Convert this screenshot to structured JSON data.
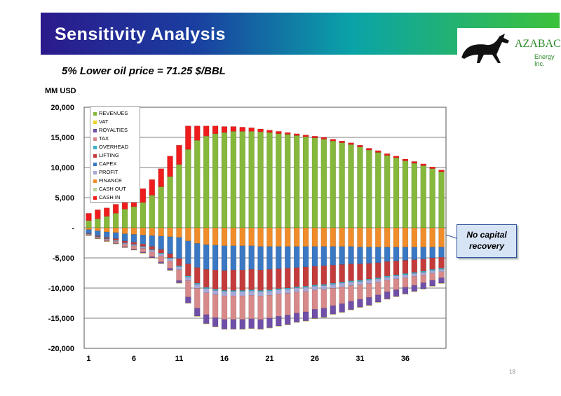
{
  "header": {
    "title": "Sensitivity Analysis",
    "logo_name": "AZABACHE",
    "logo_sub": "Energy Inc."
  },
  "subtitle": "5%  Lower oil price = 71.25 $/BBL",
  "unit_label": "MM USD",
  "callout": {
    "line1": "No capital",
    "line2": "recovery"
  },
  "page_number": "18",
  "colors": {
    "REVENUES": "#86b83c",
    "VAT": "#e8d42a",
    "ROYALTIES": "#6f4fa8",
    "TAX": "#d88a8a",
    "OVERHEAD": "#38b0c8",
    "LIFTING": "#c43b3b",
    "CAPEX": "#3a78c4",
    "PROFIT": "#a8a8d8",
    "FINANCE": "#f08c2a",
    "CASH OUT": "#b8d8a0",
    "CASH IN": "#ee1c1c"
  },
  "chart_data": {
    "type": "bar",
    "stacked": true,
    "ylabel": "MM USD",
    "ylim": [
      -20000,
      20000
    ],
    "yticks": [
      "20,000",
      "15,000",
      "10,000",
      "5,000",
      "-",
      "-5,000",
      "-10,000",
      "-15,000",
      "-20,000"
    ],
    "xticks": [
      "1",
      "6",
      "11",
      "16",
      "21",
      "26",
      "31",
      "36"
    ],
    "x": [
      1,
      2,
      3,
      4,
      5,
      6,
      7,
      8,
      9,
      10,
      11,
      12,
      13,
      14,
      15,
      16,
      17,
      18,
      19,
      20,
      21,
      22,
      23,
      24,
      25,
      26,
      27,
      28,
      29,
      30,
      31,
      32,
      33,
      34,
      35,
      36,
      37,
      38,
      39,
      40
    ],
    "legend": [
      "REVENUES",
      "VAT",
      "ROYALTIES",
      "TAX",
      "OVERHEAD",
      "LIFTING",
      "CAPEX",
      "PROFIT",
      "FINANCE",
      "CASH OUT",
      "CASH IN"
    ],
    "legend_position": "top-left",
    "grid": true,
    "series": [
      {
        "name": "REVENUES",
        "values": [
          1200,
          1500,
          1900,
          2400,
          3100,
          3500,
          4200,
          5400,
          6800,
          8500,
          10500,
          13000,
          14500,
          15200,
          15600,
          15800,
          16000,
          16000,
          16000,
          15900,
          15800,
          15600,
          15500,
          15300,
          15100,
          14900,
          14700,
          14400,
          14100,
          13800,
          13400,
          12900,
          12500,
          12000,
          11600,
          11100,
          10700,
          10300,
          9800,
          9300
        ]
      },
      {
        "name": "CASH IN",
        "values": [
          1200,
          1500,
          1400,
          1500,
          1900,
          2000,
          2300,
          2600,
          3000,
          3400,
          3200,
          3900,
          2400,
          1700,
          1300,
          1000,
          800,
          700,
          600,
          500,
          400,
          400,
          300,
          300,
          300,
          300,
          300,
          300,
          300,
          300,
          300,
          300,
          300,
          300,
          300,
          300,
          300,
          300,
          300,
          300
        ]
      },
      {
        "name": "FINANCE",
        "values": [
          -300,
          -500,
          -700,
          -800,
          -1000,
          -1100,
          -1200,
          -1300,
          -1400,
          -1500,
          -1600,
          -2200,
          -2600,
          -2800,
          -2900,
          -3000,
          -3000,
          -3000,
          -3000,
          -3100,
          -3100,
          -3100,
          -3100,
          -3100,
          -3100,
          -3100,
          -3100,
          -3100,
          -3100,
          -3100,
          -3200,
          -3200,
          -3200,
          -3200,
          -3200,
          -3200,
          -3200,
          -3200,
          -3200,
          -3200
        ]
      },
      {
        "name": "CAPEX",
        "values": [
          -600,
          -800,
          -900,
          -1000,
          -1200,
          -1300,
          -1500,
          -1800,
          -2200,
          -2800,
          -3500,
          -3800,
          -4000,
          -4100,
          -4100,
          -4100,
          -4000,
          -4000,
          -3900,
          -3900,
          -3800,
          -3700,
          -3600,
          -3500,
          -3400,
          -3300,
          -3200,
          -3100,
          -3000,
          -2900,
          -2800,
          -2700,
          -2600,
          -2400,
          -2300,
          -2200,
          -2100,
          -2000,
          -1800,
          -1700
        ]
      },
      {
        "name": "LIFTING",
        "values": [
          -100,
          -150,
          -200,
          -250,
          -300,
          -350,
          -400,
          -500,
          -600,
          -700,
          -1200,
          -2000,
          -2600,
          -3000,
          -3200,
          -3300,
          -3400,
          -3400,
          -3400,
          -3400,
          -3400,
          -3300,
          -3300,
          -3200,
          -3200,
          -3100,
          -3100,
          -3000,
          -2900,
          -2800,
          -2700,
          -2600,
          -2500,
          -2400,
          -2300,
          -2200,
          -2100,
          -2000,
          -1900,
          -1800
        ]
      },
      {
        "name": "OVERHEAD",
        "values": [
          -50,
          -60,
          -70,
          -80,
          -90,
          -100,
          -110,
          -120,
          -130,
          -140,
          -160,
          -180,
          -200,
          -200,
          -200,
          -200,
          -200,
          -200,
          -200,
          -200,
          -200,
          -200,
          -200,
          -200,
          -200,
          -200,
          -200,
          -200,
          -200,
          -200,
          -200,
          -200,
          -200,
          -200,
          -200,
          -200,
          -200,
          -200,
          -200,
          -200
        ]
      },
      {
        "name": "PROFIT",
        "values": [
          -60,
          -80,
          -100,
          -120,
          -150,
          -180,
          -220,
          -270,
          -330,
          -400,
          -500,
          -600,
          -650,
          -700,
          -700,
          -700,
          -700,
          -700,
          -700,
          -700,
          -690,
          -680,
          -670,
          -660,
          -650,
          -640,
          -630,
          -620,
          -600,
          -590,
          -570,
          -550,
          -530,
          -510,
          -490,
          -470,
          -450,
          -430,
          -410,
          -390
        ]
      },
      {
        "name": "TAX",
        "values": [
          -100,
          -150,
          -200,
          -300,
          -400,
          -500,
          -600,
          -800,
          -1000,
          -1200,
          -1800,
          -2700,
          -3300,
          -3600,
          -3800,
          -3900,
          -3900,
          -3900,
          -3900,
          -3900,
          -3800,
          -3700,
          -3600,
          -3500,
          -3400,
          -3200,
          -3100,
          -2900,
          -2800,
          -2600,
          -2400,
          -2300,
          -2100,
          -1900,
          -1800,
          -1600,
          -1500,
          -1300,
          -1200,
          -1000
        ]
      },
      {
        "name": "ROYALTIES",
        "values": [
          -40,
          -50,
          -70,
          -90,
          -110,
          -130,
          -150,
          -200,
          -250,
          -300,
          -400,
          -1000,
          -1300,
          -1500,
          -1500,
          -1600,
          -1600,
          -1600,
          -1600,
          -1600,
          -1600,
          -1600,
          -1600,
          -1500,
          -1500,
          -1500,
          -1500,
          -1400,
          -1400,
          -1400,
          -1300,
          -1300,
          -1200,
          -1200,
          -1100,
          -1100,
          -1000,
          -1000,
          -950,
          -900
        ]
      },
      {
        "name": "VAT",
        "values": [
          -10,
          -10,
          -10,
          -10,
          -10,
          -10,
          -10,
          -10,
          -10,
          -10,
          -10,
          -10,
          -10,
          -10,
          -10,
          -10,
          -10,
          -10,
          -10,
          -10,
          -10,
          -10,
          -10,
          -10,
          -10,
          -10,
          -10,
          -10,
          -10,
          -10,
          -10,
          -10,
          -10,
          -10,
          -10,
          -10,
          -10,
          -10,
          -10,
          -10
        ]
      }
    ]
  }
}
